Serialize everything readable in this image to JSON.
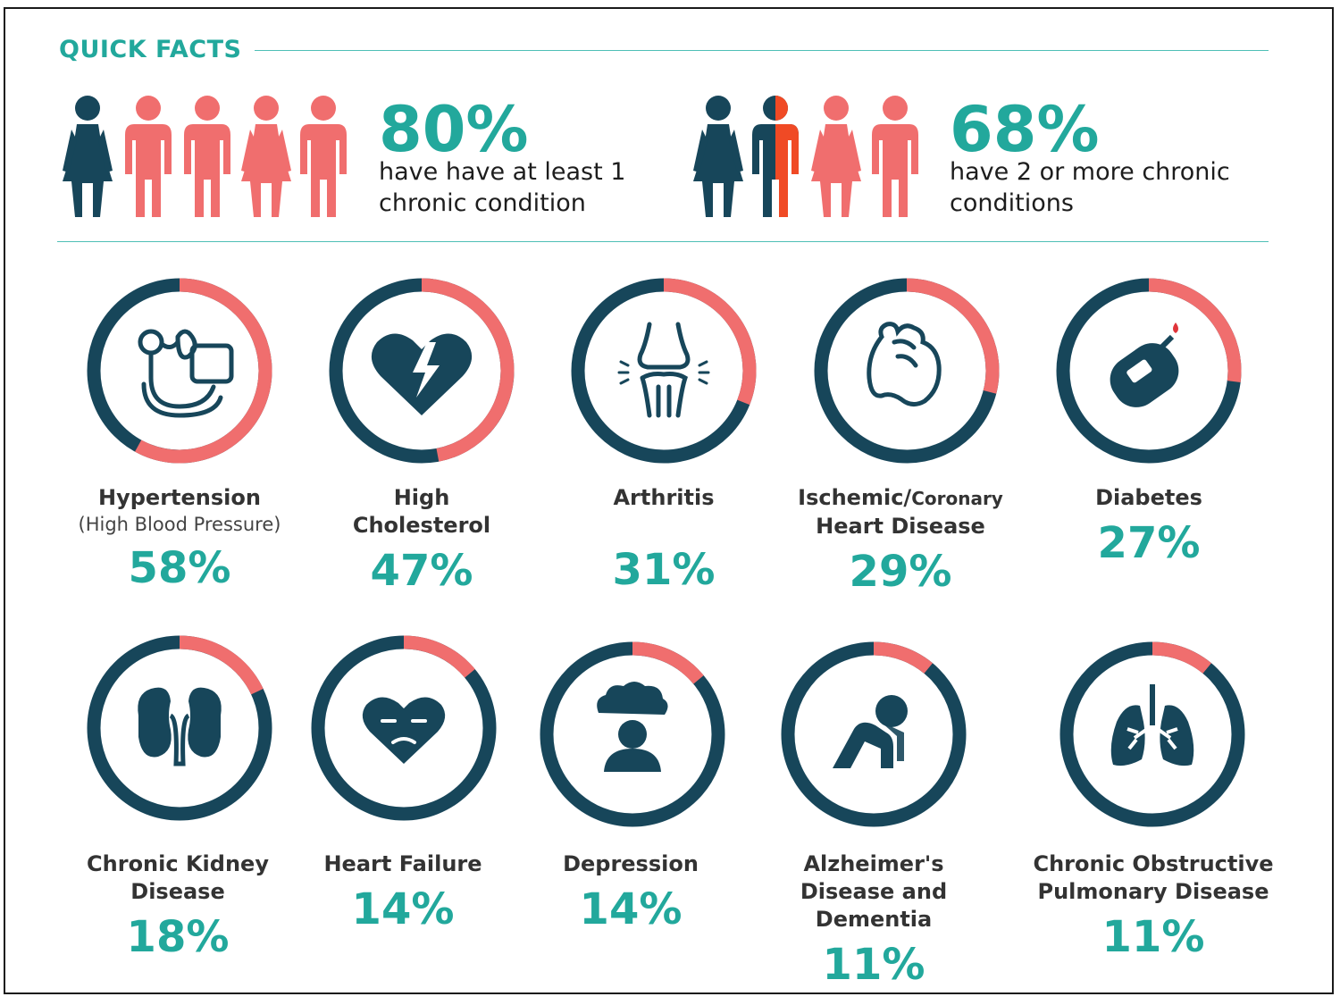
{
  "header": {
    "title": "QUICK FACTS"
  },
  "colors": {
    "accent": "#22a89c",
    "navy": "#17465a",
    "coral": "#f06e6e",
    "orange": "#f04a25"
  },
  "facts": [
    {
      "percent": "80%",
      "description": "have have at least 1 chronic condition",
      "value": 0.8
    },
    {
      "percent": "68%",
      "description": "have 2 or more chronic conditions",
      "value": 0.68
    }
  ],
  "conditions": [
    {
      "name": "Hypertension",
      "subtitle": "(High Blood Pressure)",
      "percent": "58%",
      "value": 58,
      "icon": "blood-pressure-monitor-icon"
    },
    {
      "name": "High Cholesterol",
      "percent": "47%",
      "value": 47,
      "icon": "broken-heart-icon"
    },
    {
      "name": "Arthritis",
      "percent": "31%",
      "value": 31,
      "icon": "knee-joint-icon"
    },
    {
      "name_part1": "Ischemic/",
      "name_part2": "Coronary",
      "name_line2": "Heart Disease",
      "percent": "29%",
      "value": 29,
      "icon": "heart-organ-icon"
    },
    {
      "name": "Diabetes",
      "percent": "27%",
      "value": 27,
      "icon": "glucose-meter-icon"
    },
    {
      "name": "Chronic Kidney Disease",
      "percent": "18%",
      "value": 18,
      "icon": "kidneys-icon"
    },
    {
      "name": "Heart Failure",
      "percent": "14%",
      "value": 14,
      "icon": "sad-heart-icon"
    },
    {
      "name": "Depression",
      "percent": "14%",
      "value": 14,
      "icon": "rain-cloud-person-icon"
    },
    {
      "name": "Alzheimer's Disease and Dementia",
      "percent": "11%",
      "value": 11,
      "icon": "head-in-hands-icon"
    },
    {
      "name": "Chronic Obstructive Pulmonary Disease",
      "percent": "11%",
      "value": 11,
      "icon": "lungs-icon"
    }
  ]
}
